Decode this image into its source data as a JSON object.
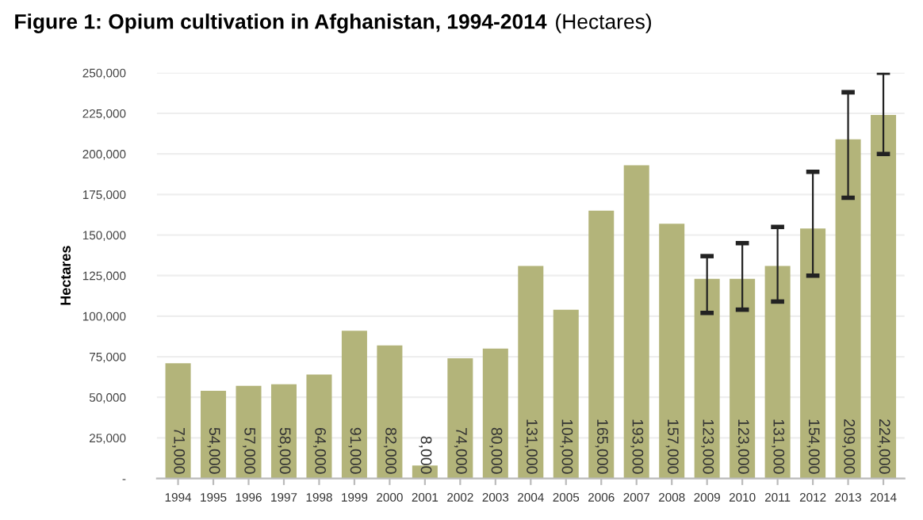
{
  "chart_data": {
    "type": "bar",
    "title": "Figure 1: Opium cultivation in Afghanistan, 1994-2014",
    "subtitle": "(Hectares)",
    "ylabel": "Hectares",
    "categories": [
      "1994",
      "1995",
      "1996",
      "1997",
      "1998",
      "1999",
      "2000",
      "2001",
      "2002",
      "2003",
      "2004",
      "2005",
      "2006",
      "2007",
      "2008",
      "2009",
      "2010",
      "2011",
      "2012",
      "2013",
      "2014"
    ],
    "values": [
      71000,
      54000,
      57000,
      58000,
      64000,
      91000,
      82000,
      8000,
      74000,
      80000,
      131000,
      104000,
      165000,
      193000,
      157000,
      123000,
      123000,
      131000,
      154000,
      209000,
      224000
    ],
    "value_labels": [
      "71,000",
      "54,000",
      "57,000",
      "58,000",
      "64,000",
      "91,000",
      "82,000",
      "8,000",
      "74,000",
      "80,000",
      "131,000",
      "104,000",
      "165,000",
      "193,000",
      "157,000",
      "123,000",
      "123,000",
      "131,000",
      "154,000",
      "209,000",
      "224,000"
    ],
    "errors": [
      null,
      null,
      null,
      null,
      null,
      null,
      null,
      null,
      null,
      null,
      null,
      null,
      null,
      null,
      null,
      [
        102000,
        137000
      ],
      [
        104000,
        145000
      ],
      [
        109000,
        155000
      ],
      [
        125000,
        189000
      ],
      [
        173000,
        238000
      ],
      [
        200000,
        250000
      ]
    ],
    "color": "#b3b47a",
    "ylim": [
      0,
      250000
    ],
    "yticks": [
      {
        "value": 0,
        "label": "-"
      },
      {
        "value": 25000,
        "label": "25,000"
      },
      {
        "value": 50000,
        "label": "50,000"
      },
      {
        "value": 75000,
        "label": "75,000"
      },
      {
        "value": 100000,
        "label": "100,000"
      },
      {
        "value": 125000,
        "label": "125,000"
      },
      {
        "value": 150000,
        "label": "150,000"
      },
      {
        "value": 175000,
        "label": "175,000"
      },
      {
        "value": 200000,
        "label": "200,000"
      },
      {
        "value": 225000,
        "label": "225,000"
      },
      {
        "value": 250000,
        "label": "250,000"
      }
    ],
    "grid": "y"
  }
}
